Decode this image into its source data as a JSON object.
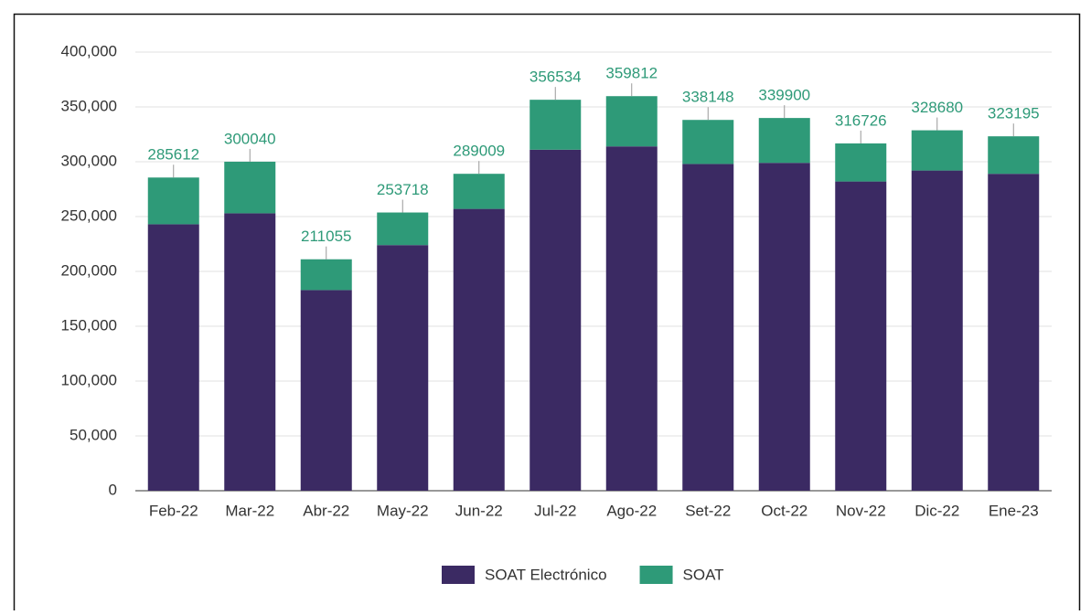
{
  "chart_data": {
    "type": "stacked_bar",
    "categories": [
      "Feb-22",
      "Mar-22",
      "Abr-22",
      "May-22",
      "Jun-22",
      "Jul-22",
      "Ago-22",
      "Set-22",
      "Oct-22",
      "Nov-22",
      "Dic-22",
      "Ene-23"
    ],
    "series": [
      {
        "name": "SOAT Electrónico",
        "color": "#3b2a63",
        "values": [
          243000,
          253000,
          183000,
          224000,
          257000,
          311000,
          314000,
          298000,
          299000,
          282000,
          292000,
          289000
        ]
      },
      {
        "name": "SOAT",
        "color": "#2e9a78",
        "values": [
          42612,
          47040,
          28055,
          29718,
          32009,
          45534,
          45812,
          40148,
          40900,
          34726,
          36680,
          34195
        ]
      }
    ],
    "totals": [
      285612,
      300040,
      211055,
      253718,
      289009,
      356534,
      359812,
      338148,
      339900,
      316726,
      328680,
      323195
    ],
    "ylim": [
      0,
      400000
    ],
    "yticks": [
      0,
      {
        "value": 50000,
        "label": "50,000"
      },
      {
        "value": 100000,
        "label": "100,000"
      },
      {
        "value": 150000,
        "label": "150,000"
      },
      {
        "value": 200000,
        "label": "200,000"
      },
      {
        "value": 250000,
        "label": "250,000"
      },
      {
        "value": 300000,
        "label": "300,000"
      },
      {
        "value": 350000,
        "label": "350,000"
      },
      {
        "value": 400000,
        "label": "400,000"
      }
    ],
    "grid": true,
    "legend": "bottom"
  }
}
